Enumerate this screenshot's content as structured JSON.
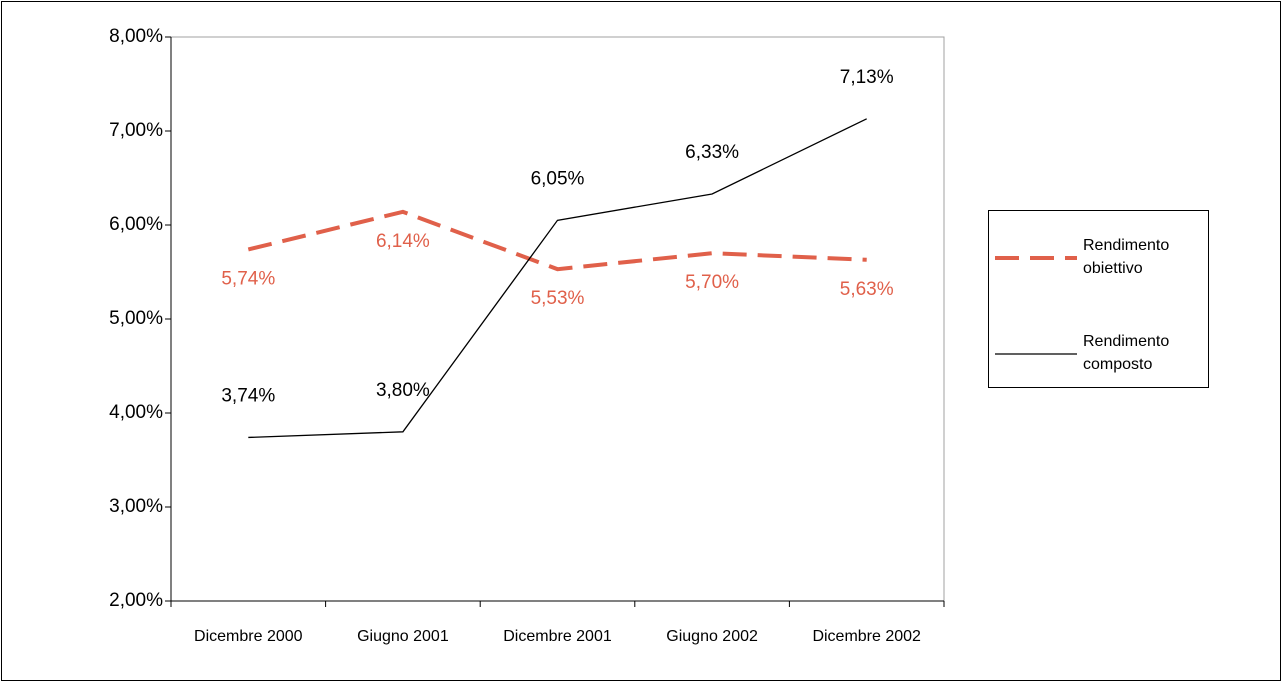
{
  "chart_data": {
    "type": "line",
    "categories": [
      "Dicembre 2000",
      "Giugno 2001",
      "Dicembre 2001",
      "Giugno 2002",
      "Dicembre 2002"
    ],
    "series": [
      {
        "name": "Rendimento obiettivo",
        "color": "#e0604a",
        "dashed": true,
        "values": [
          5.74,
          6.14,
          5.53,
          5.7,
          5.63
        ],
        "value_labels": [
          "5,74%",
          "6,14%",
          "5,53%",
          "5,70%",
          "5,63%"
        ]
      },
      {
        "name": "Rendimento composto",
        "color": "#000000",
        "dashed": false,
        "values": [
          3.74,
          3.8,
          6.05,
          6.33,
          7.13
        ],
        "value_labels": [
          "3,74%",
          "3,80%",
          "6,05%",
          "6,33%",
          "7,13%"
        ]
      }
    ],
    "ylim": [
      2,
      8
    ],
    "yticks": [
      {
        "value": 2,
        "label": "2,00%"
      },
      {
        "value": 3,
        "label": "3,00%"
      },
      {
        "value": 4,
        "label": "4,00%"
      },
      {
        "value": 5,
        "label": "5,00%"
      },
      {
        "value": 6,
        "label": "6,00%"
      },
      {
        "value": 7,
        "label": "7,00%"
      },
      {
        "value": 8,
        "label": "8,00%"
      }
    ],
    "grid": false,
    "legend": "right"
  }
}
